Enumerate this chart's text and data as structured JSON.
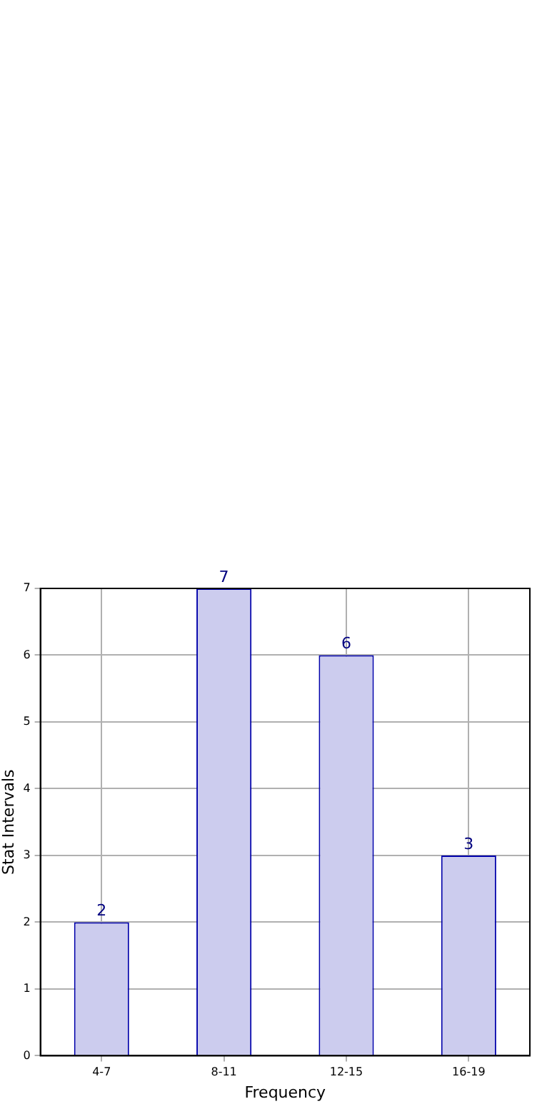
{
  "chart_data": {
    "type": "bar",
    "xlabel": "Frequency",
    "ylabel": "Stat Intervals",
    "categories": [
      "4-7",
      "8-11",
      "12-15",
      "16-19"
    ],
    "values": [
      2,
      7,
      6,
      3
    ],
    "color": "#ccccee",
    "ylim": [
      0,
      7
    ],
    "yticks": [
      0,
      1,
      2,
      3,
      4,
      5,
      6,
      7
    ],
    "grid": true,
    "data_labels": true
  }
}
